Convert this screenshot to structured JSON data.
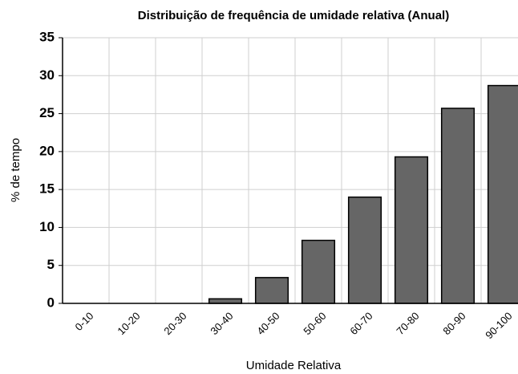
{
  "chart_data": {
    "type": "bar",
    "title": "Distribuição de frequência de umidade relativa (Anual)",
    "xlabel": "Umidade Relativa",
    "ylabel": "% de tempo",
    "categories": [
      "0-10",
      "10-20",
      "20-30",
      "30-40",
      "40-50",
      "50-60",
      "60-70",
      "70-80",
      "80-90",
      "90-100"
    ],
    "values": [
      0,
      0,
      0,
      0.6,
      3.4,
      8.3,
      14,
      19.3,
      25.7,
      28.7
    ],
    "color": "#666666",
    "ylim": [
      0,
      35
    ],
    "yticks": [
      0,
      5,
      10,
      15,
      20,
      25,
      30,
      35
    ],
    "grid": true
  }
}
